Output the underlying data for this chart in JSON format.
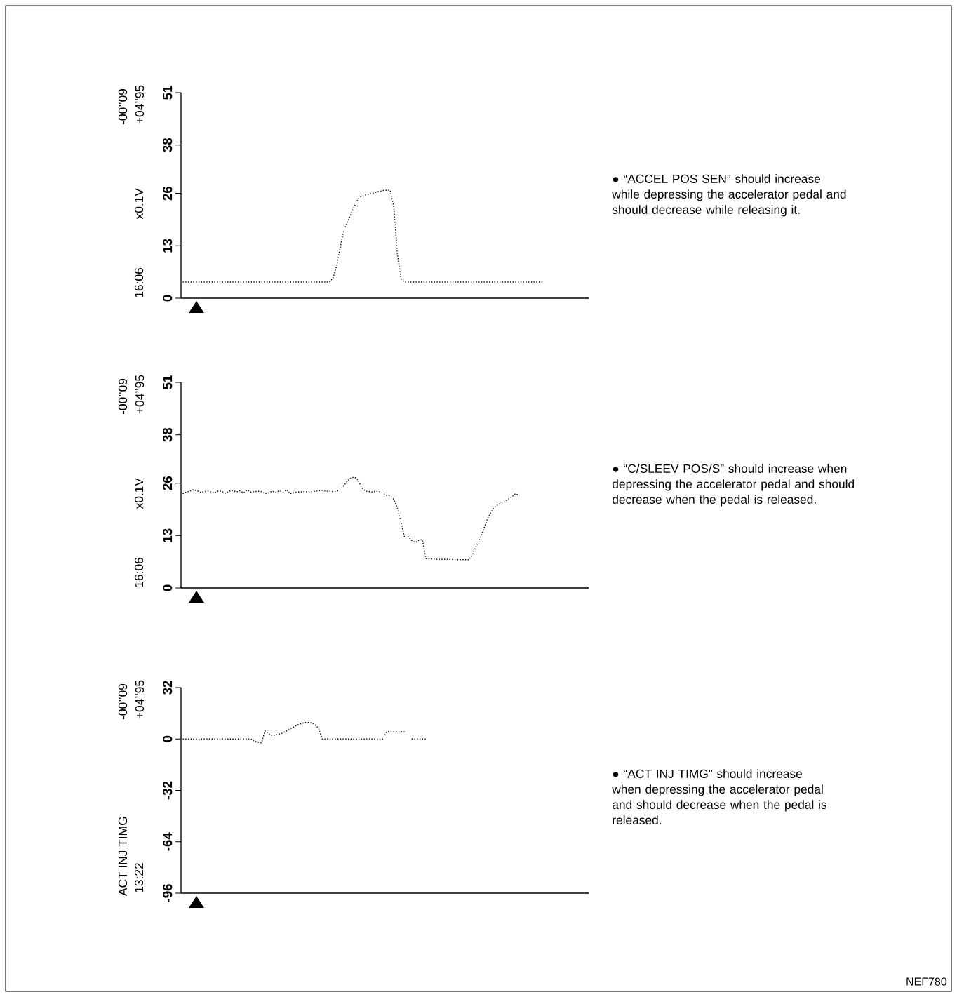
{
  "chart_data": [
    {
      "type": "line",
      "ylabel": "x0.1V",
      "annotations": [
        "-00’’09",
        "+04’’95",
        "16:06",
        "● “ACCEL POS SEN” should increase while depressing the accelerator pedal and should decrease while releasing it."
      ],
      "categories": [
        null,
        null,
        null,
        null,
        null,
        null,
        null,
        null,
        null,
        null,
        null,
        null,
        null,
        null,
        null,
        null,
        null,
        null,
        null,
        null,
        null,
        null,
        null,
        null,
        null,
        null,
        null,
        null,
        null,
        null,
        null,
        null,
        null,
        null,
        null,
        null,
        null,
        null,
        null,
        null,
        null,
        null,
        null,
        null,
        null,
        null,
        null,
        null,
        null,
        null,
        null,
        null,
        null,
        null,
        null,
        null,
        null,
        null,
        null,
        null,
        null,
        null,
        null,
        null,
        null,
        null,
        null,
        null,
        null,
        null,
        null,
        null,
        null,
        null,
        null,
        null,
        null,
        null,
        null,
        null,
        null,
        null,
        null,
        null,
        null,
        null,
        null,
        null,
        null,
        null,
        null,
        null,
        null,
        null,
        null,
        null,
        null,
        null,
        null,
        null,
        null,
        null,
        null,
        null,
        null,
        null,
        null,
        null,
        null,
        null,
        null,
        null,
        null,
        null
      ],
      "series": [
        {
          "color": "#000000",
          "values": [
            4,
            4,
            4,
            4,
            4,
            4,
            4,
            4,
            4,
            4,
            4,
            4,
            4,
            4,
            4,
            4,
            4,
            4,
            4,
            4,
            4,
            4,
            4,
            4,
            4,
            4,
            4,
            4,
            4,
            4,
            4,
            4,
            4,
            4,
            4,
            4,
            4,
            4,
            4,
            4,
            4,
            4,
            5,
            8,
            12.5,
            16.8,
            18.8,
            20.8,
            22.8,
            24.6,
            25.3,
            25.6,
            25.8,
            26.0,
            26.3,
            26.5,
            26.7,
            26.8,
            26.8,
            22.7,
            11,
            5,
            4,
            4,
            4,
            4,
            4,
            4,
            4,
            4,
            4,
            4,
            4,
            4,
            4,
            4,
            4,
            4,
            4,
            4,
            4,
            4,
            4,
            4,
            4,
            4,
            4,
            4,
            4,
            4,
            4,
            4,
            4,
            4,
            4,
            4,
            4,
            4,
            4,
            4,
            4,
            4,
            null,
            null,
            null,
            null,
            null,
            null,
            null,
            null,
            null,
            null,
            null,
            null
          ]
        }
      ],
      "ylim": [
        0,
        51
      ],
      "yticks": [
        0,
        13,
        26,
        38,
        51
      ],
      "line_style": "dotted"
    },
    {
      "type": "line",
      "ylabel": "x0.1V",
      "annotations": [
        "-00’’09",
        "+04’’95",
        "16:06",
        "● “C/SLEEV POS/S” should increase when depressing the accelerator pedal and should decrease when the pedal is released."
      ],
      "categories": [
        null,
        null,
        null,
        null,
        null,
        null,
        null,
        null,
        null,
        null,
        null,
        null,
        null,
        null,
        null,
        null,
        null,
        null,
        null,
        null,
        null,
        null,
        null,
        null,
        null,
        null,
        null,
        null,
        null,
        null,
        null,
        null,
        null,
        null,
        null,
        null,
        null,
        null,
        null,
        null,
        null,
        null,
        null,
        null,
        null,
        null,
        null,
        null,
        null,
        null,
        null,
        null,
        null,
        null,
        null,
        null,
        null,
        null,
        null,
        null,
        null,
        null,
        null,
        null,
        null,
        null,
        null,
        null,
        null,
        null,
        null,
        null,
        null,
        null,
        null,
        null,
        null,
        null,
        null,
        null,
        null,
        null,
        null,
        null,
        null,
        null,
        null,
        null,
        null,
        null,
        null,
        null,
        null,
        null,
        null,
        null,
        null,
        null,
        null,
        null,
        null,
        null,
        null,
        null,
        null,
        null,
        null,
        null,
        null,
        null,
        null,
        null,
        null,
        null
      ],
      "series": [
        {
          "color": "#000000",
          "values": [
            23.4,
            23.8,
            24.0,
            24.4,
            24.1,
            23.7,
            23.9,
            24.0,
            23.8,
            23.6,
            24.1,
            23.9,
            23.5,
            24.0,
            24.2,
            23.8,
            24.1,
            23.6,
            24.3,
            23.8,
            23.9,
            24.0,
            23.9,
            23.4,
            23.6,
            24.0,
            23.7,
            24.1,
            23.8,
            24.4,
            23.4,
            23.6,
            23.8,
            23.8,
            23.9,
            23.8,
            23.9,
            24.0,
            24.1,
            24.2,
            24.0,
            24.0,
            23.9,
            24.0,
            24.3,
            25.4,
            26.5,
            27.3,
            27.5,
            26.8,
            24.9,
            24.1,
            23.9,
            23.8,
            24.0,
            23.9,
            23.4,
            23.0,
            22.8,
            22.0,
            19.8,
            16.5,
            12.5,
            12.8,
            11.8,
            11.3,
            11.8,
            12.0,
            7.3,
            7.2,
            7.2,
            7.1,
            7.1,
            7.1,
            7.1,
            7.1,
            7.0,
            7.0,
            7.0,
            7.0,
            7.0,
            8.2,
            10.3,
            12.0,
            14.2,
            16.7,
            18.5,
            19.9,
            20.6,
            21.0,
            21.4,
            22.0,
            22.6,
            23.4,
            23.0,
            null,
            null,
            null,
            null,
            null,
            null,
            null,
            null,
            null,
            null,
            null,
            null,
            null,
            null,
            null,
            null,
            null,
            null,
            null
          ]
        }
      ],
      "ylim": [
        0,
        51
      ],
      "yticks": [
        0,
        13,
        26,
        38,
        51
      ],
      "line_style": "dotted"
    },
    {
      "type": "line",
      "ylabel": "ACT INJ TIMG",
      "annotations": [
        "-00’’09",
        "+04’’95",
        "13:22",
        "● “ACT INJ TIMG” should increase when depressing the accelerator pedal and should decrease when the pedal is released.",
        "NEF780"
      ],
      "categories": [
        null,
        null,
        null,
        null,
        null,
        null,
        null,
        null,
        null,
        null,
        null,
        null,
        null,
        null,
        null,
        null,
        null,
        null,
        null,
        null,
        null,
        null,
        null,
        null,
        null,
        null,
        null,
        null,
        null,
        null,
        null,
        null,
        null,
        null,
        null,
        null,
        null,
        null,
        null,
        null,
        null,
        null,
        null,
        null,
        null,
        null,
        null,
        null,
        null,
        null,
        null,
        null,
        null,
        null,
        null,
        null,
        null,
        null,
        null,
        null,
        null,
        null,
        null,
        null,
        null,
        null,
        null,
        null,
        null,
        null,
        null,
        null,
        null,
        null,
        null,
        null,
        null,
        null,
        null,
        null,
        null,
        null,
        null,
        null,
        null,
        null,
        null,
        null,
        null,
        null,
        null,
        null,
        null,
        null,
        null,
        null,
        null,
        null,
        null,
        null,
        null,
        null,
        null,
        null,
        null,
        null,
        null,
        null,
        null,
        null,
        null,
        null,
        null,
        null
      ],
      "series": [
        {
          "color": "#000000",
          "values": [
            0,
            0,
            0,
            0,
            0,
            0,
            0,
            0,
            0,
            0,
            0,
            0,
            0,
            0,
            0,
            0,
            0,
            0,
            0,
            0,
            -1.5,
            -2,
            -2.4,
            5.0,
            3.2,
            2.2,
            2.4,
            3,
            3.8,
            5,
            6.2,
            7.5,
            8.6,
            9.5,
            10.2,
            10.3,
            10.0,
            8.8,
            6.5,
            0,
            0,
            0,
            0,
            0,
            0,
            0,
            0,
            0,
            0,
            0,
            0,
            0,
            0,
            0,
            0,
            0,
            0,
            4.5,
            4.5,
            4.5,
            4.5,
            4.5,
            4.5,
            null,
            0,
            0,
            0,
            0,
            0,
            null,
            null,
            null,
            null,
            null,
            null,
            null,
            null,
            null,
            null,
            null,
            null,
            null,
            null,
            null,
            null,
            null,
            null,
            null,
            null,
            null,
            null,
            null,
            null,
            null,
            null,
            null,
            null,
            null,
            null,
            null,
            null,
            null,
            null,
            null,
            null,
            null,
            null,
            null,
            null,
            null,
            null,
            null,
            null,
            null
          ]
        }
      ],
      "ylim": [
        -96,
        32
      ],
      "yticks": [
        -96,
        -64,
        -32,
        0,
        32
      ],
      "line_style": "dotted"
    }
  ]
}
